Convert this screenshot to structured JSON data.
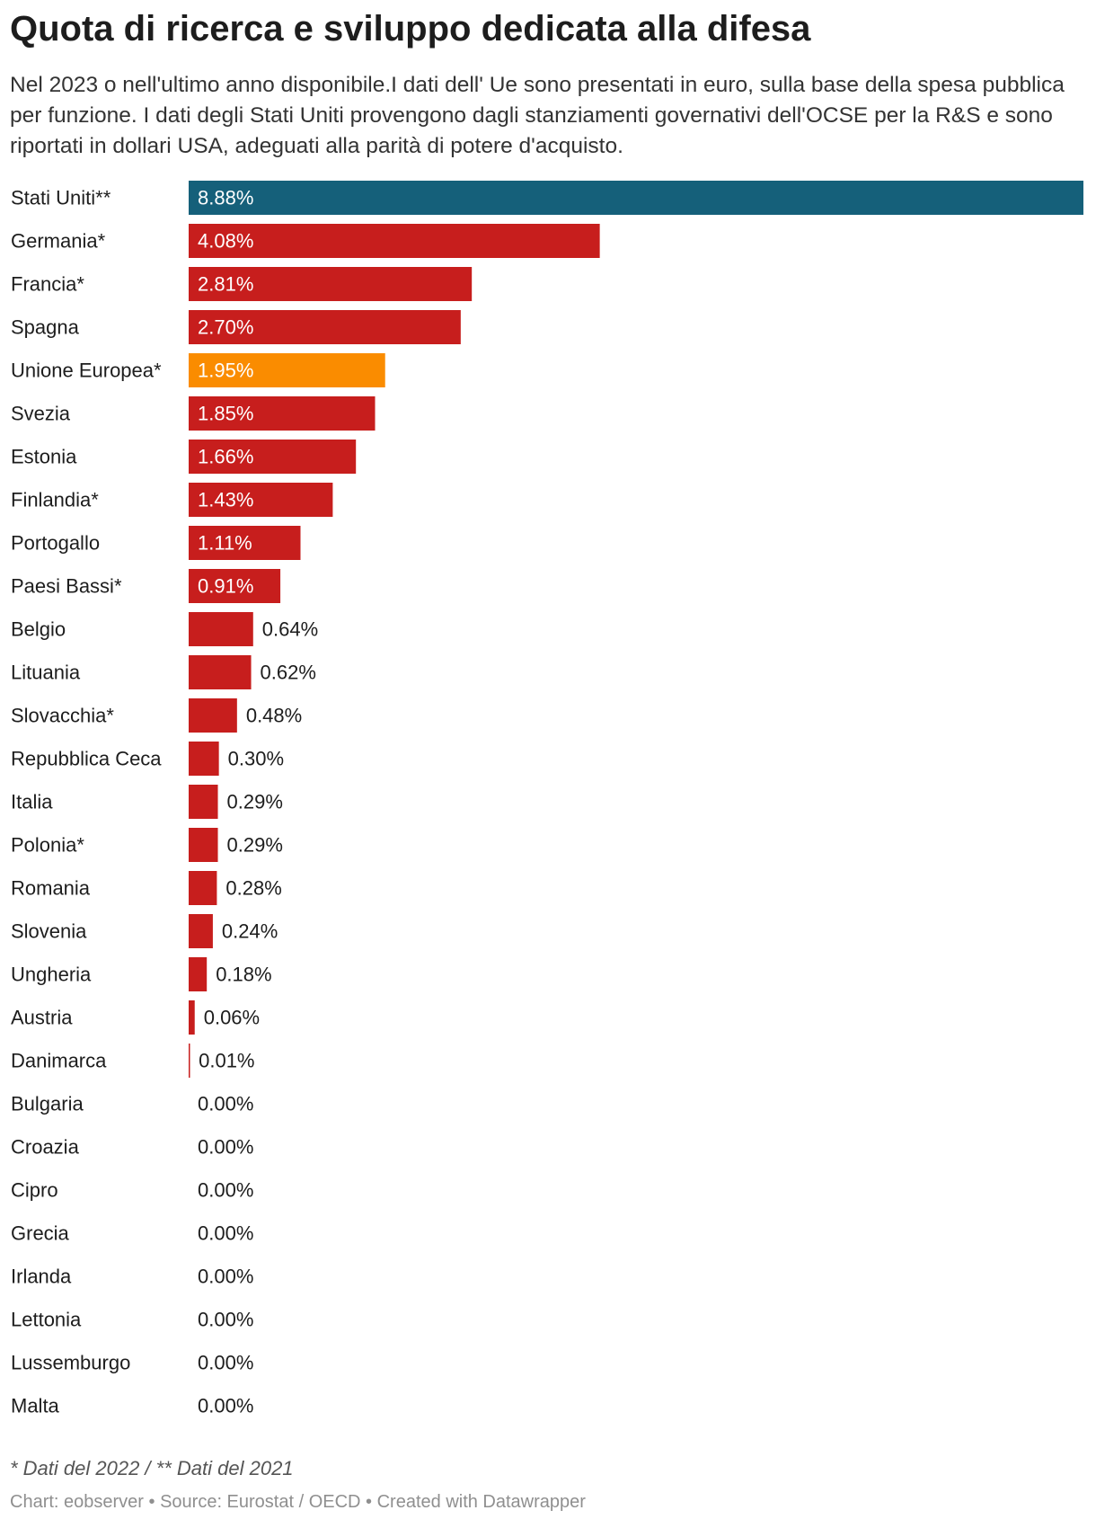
{
  "header": {
    "title": "Quota di ricerca e sviluppo dedicata alla difesa",
    "subtitle": "Nel 2023 o nell'ultimo anno disponibile.I dati dell' Ue sono presentati in euro, sulla base della spesa pubblica per funzione. I dati degli Stati Uniti provengono dagli stanziamenti governativi dell'OCSE per la R&S e sono riportati in dollari USA, adeguati alla parità di potere d'acquisto."
  },
  "footer": {
    "notes": "* Dati del 2022 / ** Dati del 2021",
    "byline": "Chart: eobserver • Source: Eurostat / OECD • Created with Datawrapper"
  },
  "colors": {
    "default": "#c71e1d",
    "united_states": "#15607a",
    "european_union": "#fa8c00"
  },
  "chart_data": {
    "type": "bar",
    "orientation": "horizontal",
    "value_format": "percent, 2 decimals",
    "xlim": [
      0,
      8.88
    ],
    "categories": [
      "Stati Uniti**",
      "Germania*",
      "Francia*",
      "Spagna",
      "Unione Europea*",
      "Svezia",
      "Estonia",
      "Finlandia*",
      "Portogallo",
      "Paesi Bassi*",
      "Belgio",
      "Lituania",
      "Slovacchia*",
      "Repubblica Ceca",
      "Italia",
      "Polonia*",
      "Romania",
      "Slovenia",
      "Ungheria",
      "Austria",
      "Danimarca",
      "Bulgaria",
      "Croazia",
      "Cipro",
      "Grecia",
      "Irlanda",
      "Lettonia",
      "Lussemburgo",
      "Malta"
    ],
    "values": [
      8.88,
      4.08,
      2.81,
      2.7,
      1.95,
      1.85,
      1.66,
      1.43,
      1.11,
      0.91,
      0.64,
      0.62,
      0.48,
      0.3,
      0.29,
      0.29,
      0.28,
      0.24,
      0.18,
      0.06,
      0.01,
      0.0,
      0.0,
      0.0,
      0.0,
      0.0,
      0.0,
      0.0,
      0.0
    ],
    "labels": [
      "8.88%",
      "4.08%",
      "2.81%",
      "2.70%",
      "1.95%",
      "1.85%",
      "1.66%",
      "1.43%",
      "1.11%",
      "0.91%",
      "0.64%",
      "0.62%",
      "0.48%",
      "0.30%",
      "0.29%",
      "0.29%",
      "0.28%",
      "0.24%",
      "0.18%",
      "0.06%",
      "0.01%",
      "0.00%",
      "0.00%",
      "0.00%",
      "0.00%",
      "0.00%",
      "0.00%",
      "0.00%",
      "0.00%"
    ],
    "highlight": {
      "Stati Uniti**": "united_states",
      "Unione Europea*": "european_union"
    }
  }
}
